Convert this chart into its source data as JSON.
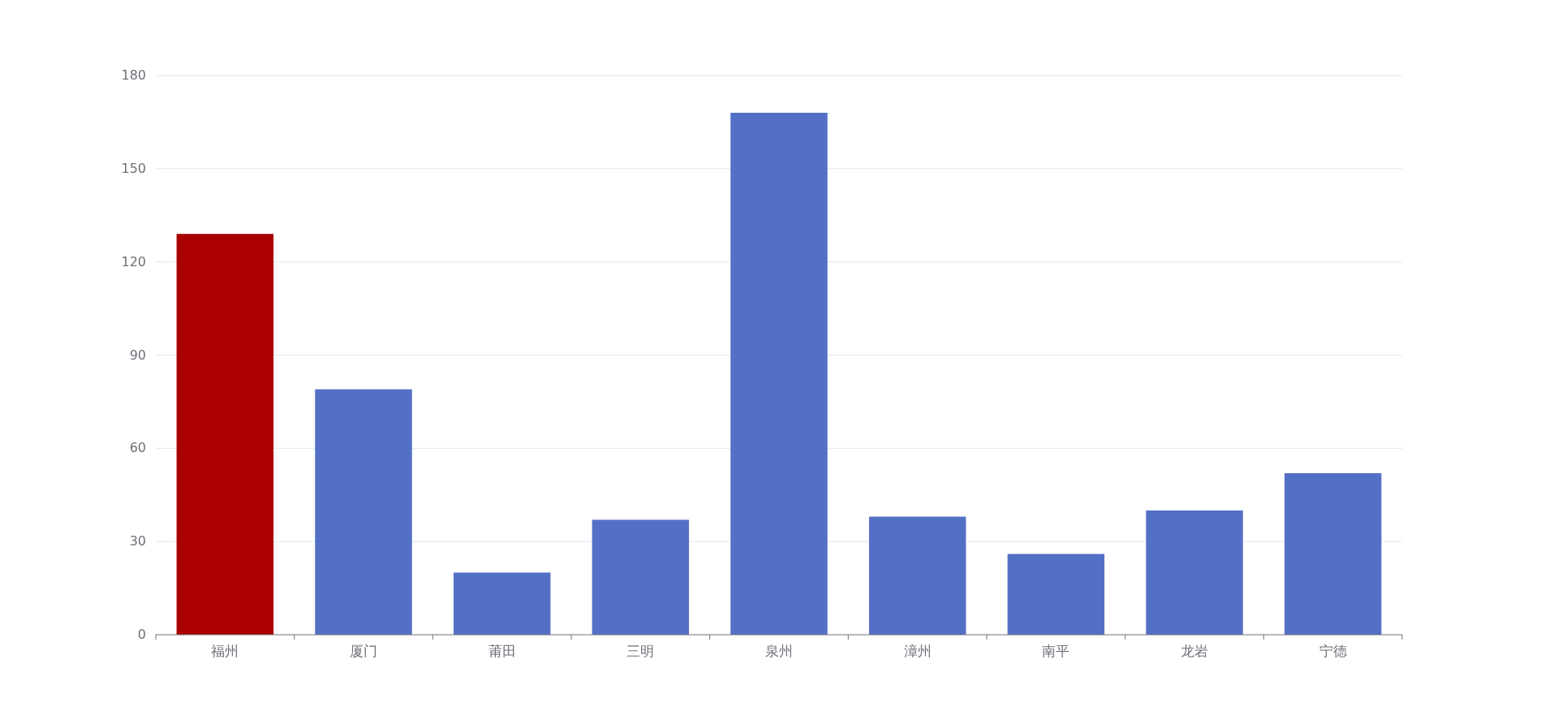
{
  "chart_data": {
    "type": "bar",
    "categories": [
      "福州",
      "厦门",
      "莆田",
      "三明",
      "泉州",
      "漳州",
      "南平",
      "龙岩",
      "宁德"
    ],
    "values": [
      129,
      79,
      20,
      37,
      168,
      38,
      26,
      40,
      52
    ],
    "colors": [
      "#aa0000",
      "#5470c6",
      "#5470c6",
      "#5470c6",
      "#5470c6",
      "#5470c6",
      "#5470c6",
      "#5470c6",
      "#5470c6"
    ],
    "ylim": [
      0,
      180
    ],
    "yticks": [
      0,
      30,
      60,
      90,
      120,
      150,
      180
    ],
    "grid": "y"
  }
}
